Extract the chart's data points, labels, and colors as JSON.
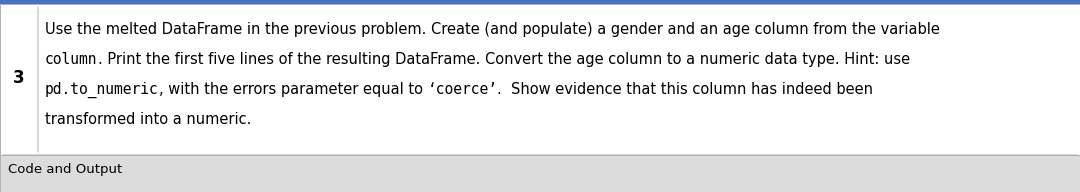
{
  "number": "3",
  "line1": "Use the melted DataFrame in the previous problem. Create (and populate) a gender and an age column from the variable",
  "line2_code": "column",
  "line2_normal": ". Print the first five lines of the resulting DataFrame. Convert the age column to a numeric data type. Hint: use",
  "line3_code1": "pd.to_numeric",
  "line3_normal1": ", with the errors parameter equal to ",
  "line3_code2": "‘coerce’",
  "line3_normal2": ".  Show evidence that this column has indeed been",
  "line4": "transformed into a numeric.",
  "footer_text": "Code and Output",
  "bg_color_main": "#ffffff",
  "bg_color_footer": "#dcdcdc",
  "border_color": "#b0b0b0",
  "number_color": "#000000",
  "text_color": "#000000",
  "accent_color": "#4472c4",
  "font_size_main": 10.5,
  "font_size_footer": 9.5,
  "font_size_number": 12
}
